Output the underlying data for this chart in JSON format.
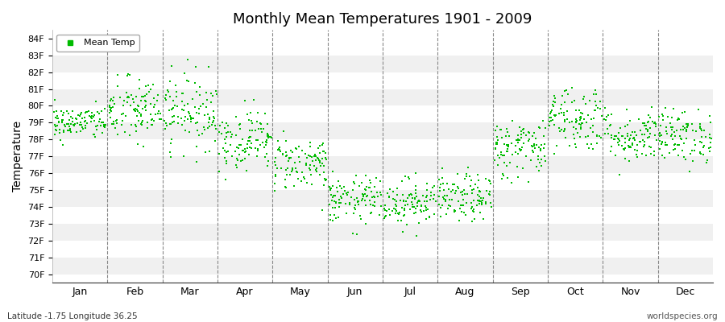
{
  "title": "Monthly Mean Temperatures 1901 - 2009",
  "ylabel": "Temperature",
  "xlabel_bottom_left": "Latitude -1.75 Longitude 36.25",
  "xlabel_bottom_right": "worldspecies.org",
  "legend_label": "Mean Temp",
  "marker_color": "#00bb00",
  "background_color": "#ffffff",
  "plot_bg_color": "#ffffff",
  "band_colors": [
    "#f0f0f0",
    "#ffffff"
  ],
  "ytick_labels": [
    "70F",
    "71F",
    "72F",
    "73F",
    "74F",
    "75F",
    "76F",
    "77F",
    "78F",
    "79F",
    "80F",
    "81F",
    "82F",
    "83F",
    "84F"
  ],
  "ytick_values": [
    70,
    71,
    72,
    73,
    74,
    75,
    76,
    77,
    78,
    79,
    80,
    81,
    82,
    83,
    84
  ],
  "months": [
    "Jan",
    "Feb",
    "Mar",
    "Apr",
    "May",
    "Jun",
    "Jul",
    "Aug",
    "Sep",
    "Oct",
    "Nov",
    "Dec"
  ],
  "seed": 42,
  "n_years": 109,
  "monthly_mean_temps_F": [
    79.0,
    79.7,
    79.7,
    78.0,
    76.6,
    74.4,
    74.3,
    74.5,
    77.5,
    79.3,
    78.2,
    78.2
  ],
  "monthly_std_F": [
    0.5,
    1.0,
    1.1,
    0.9,
    0.8,
    0.7,
    0.7,
    0.7,
    0.9,
    1.0,
    0.8,
    0.8
  ],
  "marker_size": 4,
  "dpi": 100,
  "figsize": [
    9.0,
    4.0
  ]
}
